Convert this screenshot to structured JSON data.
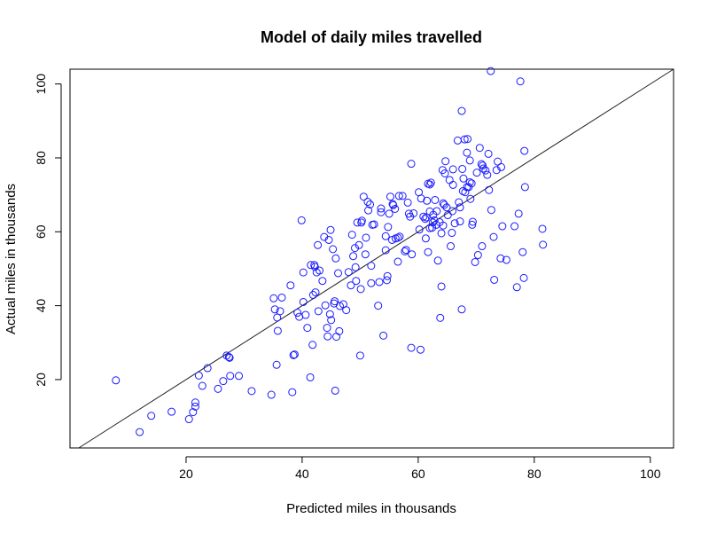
{
  "chart_data": {
    "type": "scatter",
    "title": "Model of daily miles travelled",
    "xlabel": "Predicted miles in thousands",
    "ylabel": "Actual miles in thousands",
    "xlim": [
      0,
      104
    ],
    "ylim": [
      1.5,
      104
    ],
    "xticks": [
      20,
      40,
      60,
      80,
      100
    ],
    "yticks": [
      20,
      40,
      60,
      80,
      100
    ],
    "reference_line": {
      "slope": 1,
      "intercept": 0
    },
    "point_color": "#1a1aff",
    "points": [
      [
        7.9,
        19.8
      ],
      [
        12,
        5.8
      ],
      [
        14,
        10.2
      ],
      [
        17.5,
        11.3
      ],
      [
        20.5,
        9.3
      ],
      [
        21.2,
        11.2
      ],
      [
        21.6,
        12.7
      ],
      [
        21.6,
        13.8
      ],
      [
        22.2,
        21.1
      ],
      [
        22.8,
        18.3
      ],
      [
        23.7,
        23.1
      ],
      [
        25.5,
        17.5
      ],
      [
        26.4,
        19.6
      ],
      [
        27,
        26.5
      ],
      [
        27.4,
        26.1
      ],
      [
        27.5,
        25.9
      ],
      [
        27.6,
        21
      ],
      [
        29.1,
        21
      ],
      [
        31.3,
        16.9
      ],
      [
        34.7,
        15.9
      ],
      [
        35.1,
        42
      ],
      [
        35.3,
        39
      ],
      [
        35.6,
        24
      ],
      [
        35.7,
        36.8
      ],
      [
        35.8,
        33.2
      ],
      [
        36.2,
        38.5
      ],
      [
        36.5,
        42.2
      ],
      [
        38,
        45.5
      ],
      [
        38.3,
        16.6
      ],
      [
        38.5,
        26.6
      ],
      [
        38.7,
        26.8
      ],
      [
        39.2,
        38.1
      ],
      [
        39.5,
        37
      ],
      [
        39.9,
        63.1
      ],
      [
        40.2,
        41
      ],
      [
        40.2,
        49
      ],
      [
        40.6,
        37.5
      ],
      [
        40.9,
        34
      ],
      [
        41.4,
        20.6
      ],
      [
        41.5,
        51
      ],
      [
        41.8,
        29.4
      ],
      [
        41.9,
        42.9
      ],
      [
        42.1,
        51
      ],
      [
        42.2,
        50.5
      ],
      [
        42.3,
        43.6
      ],
      [
        42.5,
        49
      ],
      [
        42.7,
        56.4
      ],
      [
        42.8,
        38.5
      ],
      [
        43,
        49.5
      ],
      [
        43.5,
        46.7
      ],
      [
        43.8,
        58.6
      ],
      [
        44,
        40.1
      ],
      [
        44.3,
        34
      ],
      [
        44.4,
        31.7
      ],
      [
        44.6,
        57.8
      ],
      [
        44.8,
        37.7
      ],
      [
        44.9,
        60.5
      ],
      [
        45,
        36.1
      ],
      [
        45.3,
        55.3
      ],
      [
        45.5,
        40.6
      ],
      [
        45.6,
        41.2
      ],
      [
        45.7,
        17
      ],
      [
        45.8,
        52.8
      ],
      [
        45.9,
        31.6
      ],
      [
        46.2,
        48.8
      ],
      [
        46.4,
        33.1
      ],
      [
        46.5,
        39.9
      ],
      [
        47.1,
        40.4
      ],
      [
        47.6,
        38.8
      ],
      [
        48,
        49.1
      ],
      [
        48.4,
        45.5
      ],
      [
        48.6,
        59.2
      ],
      [
        48.8,
        53.4
      ],
      [
        49.1,
        55.6
      ],
      [
        49.2,
        50.4
      ],
      [
        49.3,
        46.7
      ],
      [
        49.5,
        62.5
      ],
      [
        49.8,
        56.4
      ],
      [
        50,
        26.5
      ],
      [
        50.1,
        44.5
      ],
      [
        50.2,
        62.5
      ],
      [
        50.3,
        63
      ],
      [
        50.6,
        69.5
      ],
      [
        50.9,
        53.9
      ],
      [
        51,
        58.4
      ],
      [
        51.3,
        68.1
      ],
      [
        51.4,
        65.8
      ],
      [
        51.7,
        67.4
      ],
      [
        51.9,
        50.8
      ],
      [
        51.9,
        46.1
      ],
      [
        52.1,
        61.9
      ],
      [
        52.4,
        62
      ],
      [
        53.1,
        40
      ],
      [
        53.3,
        46.4
      ],
      [
        53.6,
        66.3
      ],
      [
        53.6,
        65.3
      ],
      [
        54,
        31.9
      ],
      [
        54.4,
        55
      ],
      [
        54.4,
        58.8
      ],
      [
        54.6,
        46.9
      ],
      [
        54.7,
        48
      ],
      [
        54.8,
        61.3
      ],
      [
        55,
        64.9
      ],
      [
        55.2,
        69.5
      ],
      [
        55.5,
        57.8
      ],
      [
        55.6,
        67.5
      ],
      [
        55.7,
        67.2
      ],
      [
        56,
        66.2
      ],
      [
        56.1,
        58.2
      ],
      [
        56.5,
        51.9
      ],
      [
        56.5,
        58.4
      ],
      [
        56.7,
        69.7
      ],
      [
        56.8,
        58.7
      ],
      [
        57.3,
        69.7
      ],
      [
        57.7,
        54.7
      ],
      [
        57.9,
        55.1
      ],
      [
        58.2,
        67.9
      ],
      [
        58.4,
        64.9
      ],
      [
        58.6,
        64.1
      ],
      [
        58.8,
        28.6
      ],
      [
        58.8,
        78.4
      ],
      [
        58.9,
        53.9
      ],
      [
        59.2,
        65
      ],
      [
        60.1,
        70.7
      ],
      [
        60.2,
        60.6
      ],
      [
        60.4,
        28.1
      ],
      [
        60.5,
        69
      ],
      [
        60.9,
        64.1
      ],
      [
        61.2,
        63.5
      ],
      [
        61.3,
        58.2
      ],
      [
        61.4,
        63.9
      ],
      [
        61.5,
        68.4
      ],
      [
        61.7,
        54.5
      ],
      [
        61.7,
        73
      ],
      [
        62,
        65.5
      ],
      [
        62,
        72.8
      ],
      [
        62,
        61
      ],
      [
        62.2,
        73.3
      ],
      [
        62.4,
        61.1
      ],
      [
        62.5,
        62.5
      ],
      [
        62.6,
        64.6
      ],
      [
        62.8,
        63.1
      ],
      [
        62.9,
        68.6
      ],
      [
        63.1,
        61.9
      ],
      [
        63.2,
        65.6
      ],
      [
        63.4,
        52.2
      ],
      [
        63.7,
        62.6
      ],
      [
        63.8,
        36.7
      ],
      [
        64,
        45.2
      ],
      [
        64,
        59.6
      ],
      [
        64.2,
        76.7
      ],
      [
        64.3,
        67.7
      ],
      [
        64.3,
        61.7
      ],
      [
        64.5,
        67.3
      ],
      [
        64.6,
        75.8
      ],
      [
        64.7,
        79.1
      ],
      [
        64.9,
        66.6
      ],
      [
        65.1,
        64.5
      ],
      [
        65.4,
        74
      ],
      [
        65.6,
        56.1
      ],
      [
        65.8,
        59.7
      ],
      [
        65.9,
        65.6
      ],
      [
        66,
        72.7
      ],
      [
        66,
        76.9
      ],
      [
        66.3,
        62.3
      ],
      [
        66.8,
        84.7
      ],
      [
        67,
        68
      ],
      [
        67.2,
        66.6
      ],
      [
        67.2,
        62.8
      ],
      [
        67.5,
        92.7
      ],
      [
        67.5,
        39
      ],
      [
        67.6,
        77
      ],
      [
        67.7,
        71
      ],
      [
        67.8,
        74.4
      ],
      [
        68,
        85
      ],
      [
        68.1,
        70.7
      ],
      [
        68.4,
        72.1
      ],
      [
        68.4,
        81.4
      ],
      [
        68.5,
        85.1
      ],
      [
        68.7,
        72.1
      ],
      [
        68.9,
        73.4
      ],
      [
        68.9,
        79.3
      ],
      [
        69,
        68.9
      ],
      [
        69.2,
        73.1
      ],
      [
        69.3,
        61.9
      ],
      [
        69.4,
        62.7
      ],
      [
        69.8,
        51.8
      ],
      [
        70.1,
        76
      ],
      [
        70.3,
        53.7
      ],
      [
        70.6,
        82.7
      ],
      [
        70.9,
        78.3
      ],
      [
        71,
        56.1
      ],
      [
        71.1,
        77.9
      ],
      [
        71.2,
        77.1
      ],
      [
        71.6,
        76.6
      ],
      [
        71.9,
        75.4
      ],
      [
        72.1,
        81.1
      ],
      [
        72.2,
        71.3
      ],
      [
        72.5,
        103.5
      ],
      [
        72.6,
        65.9
      ],
      [
        73,
        58.6
      ],
      [
        73.1,
        47
      ],
      [
        73.5,
        76.7
      ],
      [
        73.7,
        79
      ],
      [
        74.2,
        52.8
      ],
      [
        74.3,
        77.5
      ],
      [
        74.5,
        61.5
      ],
      [
        75.2,
        52.4
      ],
      [
        76.6,
        61.5
      ],
      [
        77,
        45
      ],
      [
        77.3,
        64.9
      ],
      [
        77.6,
        100.7
      ],
      [
        78,
        54.5
      ],
      [
        78.2,
        47.5
      ],
      [
        78.3,
        81.9
      ],
      [
        78.4,
        72.1
      ],
      [
        81.4,
        60.8
      ],
      [
        81.5,
        56.5
      ]
    ]
  }
}
